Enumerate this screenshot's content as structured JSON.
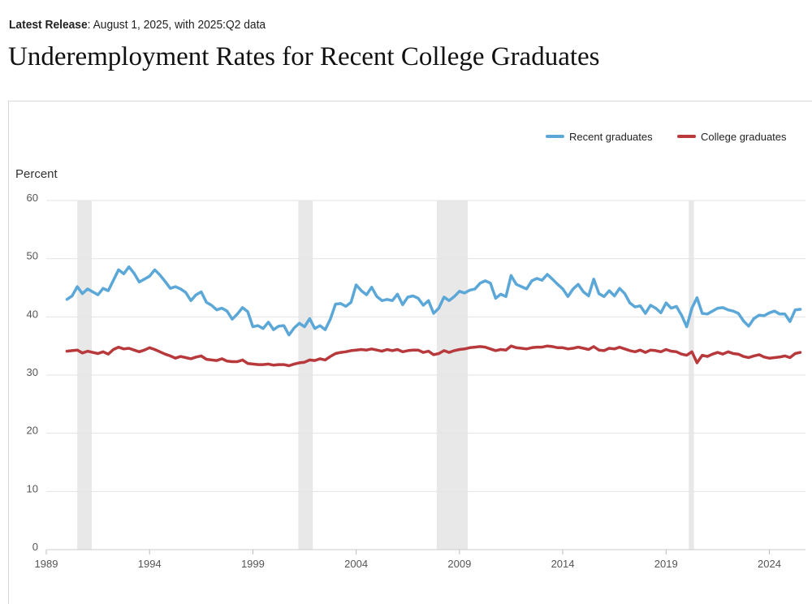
{
  "header": {
    "release_label": "Latest Release",
    "release_text": ": August 1, 2025, with 2025:Q2 data",
    "title": "Underemployment Rates for Recent College Graduates"
  },
  "chart_data": {
    "type": "line",
    "title": "Underemployment Rates for Recent College Graduates",
    "ylabel": "Percent",
    "xlabel": "",
    "ylim": [
      0,
      60
    ],
    "xlim": [
      1989.0,
      2025.75
    ],
    "yticks": [
      0,
      10,
      20,
      30,
      40,
      50,
      60
    ],
    "xticks": [
      1989,
      1994,
      1999,
      2004,
      2009,
      2014,
      2019,
      2024
    ],
    "legend_position": "top-right",
    "grid": true,
    "recessions": [
      [
        1990.5,
        1991.2
      ],
      [
        2001.2,
        2001.9
      ],
      [
        2007.9,
        2009.4
      ],
      [
        2020.1,
        2020.35
      ]
    ],
    "series": [
      {
        "name": "Recent graduates",
        "color": "#5ba7d8",
        "points": [
          [
            1990.0,
            43.0
          ],
          [
            1990.25,
            43.6
          ],
          [
            1990.5,
            45.2
          ],
          [
            1990.75,
            44.0
          ],
          [
            1991.0,
            44.8
          ],
          [
            1991.25,
            44.3
          ],
          [
            1991.5,
            43.8
          ],
          [
            1991.75,
            44.9
          ],
          [
            1992.0,
            44.5
          ],
          [
            1992.25,
            46.3
          ],
          [
            1992.5,
            48.1
          ],
          [
            1992.75,
            47.4
          ],
          [
            1993.0,
            48.6
          ],
          [
            1993.25,
            47.5
          ],
          [
            1993.5,
            46.0
          ],
          [
            1993.75,
            46.5
          ],
          [
            1994.0,
            47.0
          ],
          [
            1994.25,
            48.1
          ],
          [
            1994.5,
            47.2
          ],
          [
            1994.75,
            46.1
          ],
          [
            1995.0,
            44.9
          ],
          [
            1995.25,
            45.2
          ],
          [
            1995.5,
            44.8
          ],
          [
            1995.75,
            44.2
          ],
          [
            1996.0,
            42.8
          ],
          [
            1996.25,
            43.8
          ],
          [
            1996.5,
            44.3
          ],
          [
            1996.75,
            42.5
          ],
          [
            1997.0,
            42.0
          ],
          [
            1997.25,
            41.2
          ],
          [
            1997.5,
            41.5
          ],
          [
            1997.75,
            41.0
          ],
          [
            1998.0,
            39.6
          ],
          [
            1998.25,
            40.5
          ],
          [
            1998.5,
            41.6
          ],
          [
            1998.75,
            40.9
          ],
          [
            1999.0,
            38.3
          ],
          [
            1999.25,
            38.5
          ],
          [
            1999.5,
            38.0
          ],
          [
            1999.75,
            39.1
          ],
          [
            2000.0,
            37.8
          ],
          [
            2000.25,
            38.4
          ],
          [
            2000.5,
            38.5
          ],
          [
            2000.75,
            36.9
          ],
          [
            2001.0,
            38.1
          ],
          [
            2001.25,
            38.9
          ],
          [
            2001.5,
            38.3
          ],
          [
            2001.75,
            39.7
          ],
          [
            2002.0,
            38.0
          ],
          [
            2002.25,
            38.5
          ],
          [
            2002.5,
            37.8
          ],
          [
            2002.75,
            39.6
          ],
          [
            2003.0,
            42.2
          ],
          [
            2003.25,
            42.3
          ],
          [
            2003.5,
            41.8
          ],
          [
            2003.75,
            42.5
          ],
          [
            2004.0,
            45.5
          ],
          [
            2004.25,
            44.5
          ],
          [
            2004.5,
            43.8
          ],
          [
            2004.75,
            45.1
          ],
          [
            2005.0,
            43.5
          ],
          [
            2005.25,
            42.8
          ],
          [
            2005.5,
            43.0
          ],
          [
            2005.75,
            42.8
          ],
          [
            2006.0,
            43.9
          ],
          [
            2006.25,
            42.1
          ],
          [
            2006.5,
            43.4
          ],
          [
            2006.75,
            43.6
          ],
          [
            2007.0,
            43.2
          ],
          [
            2007.25,
            42.0
          ],
          [
            2007.5,
            42.8
          ],
          [
            2007.75,
            40.6
          ],
          [
            2008.0,
            41.5
          ],
          [
            2008.25,
            43.4
          ],
          [
            2008.5,
            42.8
          ],
          [
            2008.75,
            43.5
          ],
          [
            2009.0,
            44.4
          ],
          [
            2009.25,
            44.1
          ],
          [
            2009.5,
            44.6
          ],
          [
            2009.75,
            44.8
          ],
          [
            2010.0,
            45.8
          ],
          [
            2010.25,
            46.2
          ],
          [
            2010.5,
            45.8
          ],
          [
            2010.75,
            43.2
          ],
          [
            2011.0,
            43.9
          ],
          [
            2011.25,
            43.5
          ],
          [
            2011.5,
            47.1
          ],
          [
            2011.75,
            45.6
          ],
          [
            2012.0,
            45.2
          ],
          [
            2012.25,
            44.8
          ],
          [
            2012.5,
            46.2
          ],
          [
            2012.75,
            46.6
          ],
          [
            2013.0,
            46.3
          ],
          [
            2013.25,
            47.3
          ],
          [
            2013.5,
            46.5
          ],
          [
            2013.75,
            45.6
          ],
          [
            2014.0,
            44.8
          ],
          [
            2014.25,
            43.5
          ],
          [
            2014.5,
            44.8
          ],
          [
            2014.75,
            45.6
          ],
          [
            2015.0,
            44.3
          ],
          [
            2015.25,
            43.6
          ],
          [
            2015.5,
            46.5
          ],
          [
            2015.75,
            44.0
          ],
          [
            2016.0,
            43.5
          ],
          [
            2016.25,
            44.5
          ],
          [
            2016.5,
            43.6
          ],
          [
            2016.75,
            44.9
          ],
          [
            2017.0,
            44.0
          ],
          [
            2017.25,
            42.4
          ],
          [
            2017.5,
            41.7
          ],
          [
            2017.75,
            41.9
          ],
          [
            2018.0,
            40.6
          ],
          [
            2018.25,
            42.0
          ],
          [
            2018.5,
            41.5
          ],
          [
            2018.75,
            40.7
          ],
          [
            2019.0,
            42.4
          ],
          [
            2019.25,
            41.5
          ],
          [
            2019.5,
            41.8
          ],
          [
            2019.75,
            40.3
          ],
          [
            2020.0,
            38.3
          ],
          [
            2020.25,
            41.5
          ],
          [
            2020.5,
            43.3
          ],
          [
            2020.75,
            40.6
          ],
          [
            2021.0,
            40.5
          ],
          [
            2021.25,
            41.0
          ],
          [
            2021.5,
            41.5
          ],
          [
            2021.75,
            41.6
          ],
          [
            2022.0,
            41.2
          ],
          [
            2022.25,
            41.0
          ],
          [
            2022.5,
            40.6
          ],
          [
            2022.75,
            39.3
          ],
          [
            2023.0,
            38.4
          ],
          [
            2023.25,
            39.7
          ],
          [
            2023.5,
            40.3
          ],
          [
            2023.75,
            40.2
          ],
          [
            2024.0,
            40.7
          ],
          [
            2024.25,
            41.0
          ],
          [
            2024.5,
            40.5
          ],
          [
            2024.75,
            40.5
          ],
          [
            2025.0,
            39.2
          ],
          [
            2025.25,
            41.2
          ],
          [
            2025.5,
            41.3
          ]
        ]
      },
      {
        "name": "College graduates",
        "color": "#b8393c",
        "points": [
          [
            1990.0,
            34.1
          ],
          [
            1990.25,
            34.2
          ],
          [
            1990.5,
            34.3
          ],
          [
            1990.75,
            33.8
          ],
          [
            1991.0,
            34.1
          ],
          [
            1991.25,
            33.9
          ],
          [
            1991.5,
            33.7
          ],
          [
            1991.75,
            34.0
          ],
          [
            1992.0,
            33.6
          ],
          [
            1992.25,
            34.4
          ],
          [
            1992.5,
            34.8
          ],
          [
            1992.75,
            34.5
          ],
          [
            1993.0,
            34.6
          ],
          [
            1993.25,
            34.3
          ],
          [
            1993.5,
            34.0
          ],
          [
            1993.75,
            34.3
          ],
          [
            1994.0,
            34.7
          ],
          [
            1994.25,
            34.4
          ],
          [
            1994.5,
            34.0
          ],
          [
            1994.75,
            33.6
          ],
          [
            1995.0,
            33.3
          ],
          [
            1995.25,
            32.9
          ],
          [
            1995.5,
            33.2
          ],
          [
            1995.75,
            33.0
          ],
          [
            1996.0,
            32.8
          ],
          [
            1996.25,
            33.1
          ],
          [
            1996.5,
            33.3
          ],
          [
            1996.75,
            32.7
          ],
          [
            1997.0,
            32.6
          ],
          [
            1997.25,
            32.5
          ],
          [
            1997.5,
            32.8
          ],
          [
            1997.75,
            32.4
          ],
          [
            1998.0,
            32.3
          ],
          [
            1998.25,
            32.3
          ],
          [
            1998.5,
            32.6
          ],
          [
            1998.75,
            32.0
          ],
          [
            1999.0,
            31.9
          ],
          [
            1999.25,
            31.8
          ],
          [
            1999.5,
            31.8
          ],
          [
            1999.75,
            31.9
          ],
          [
            2000.0,
            31.7
          ],
          [
            2000.25,
            31.8
          ],
          [
            2000.5,
            31.8
          ],
          [
            2000.75,
            31.6
          ],
          [
            2001.0,
            31.9
          ],
          [
            2001.25,
            32.1
          ],
          [
            2001.5,
            32.2
          ],
          [
            2001.75,
            32.6
          ],
          [
            2002.0,
            32.5
          ],
          [
            2002.25,
            32.8
          ],
          [
            2002.5,
            32.6
          ],
          [
            2002.75,
            33.2
          ],
          [
            2003.0,
            33.7
          ],
          [
            2003.25,
            33.9
          ],
          [
            2003.5,
            34.0
          ],
          [
            2003.75,
            34.2
          ],
          [
            2004.0,
            34.3
          ],
          [
            2004.25,
            34.4
          ],
          [
            2004.5,
            34.3
          ],
          [
            2004.75,
            34.5
          ],
          [
            2005.0,
            34.3
          ],
          [
            2005.25,
            34.1
          ],
          [
            2005.5,
            34.4
          ],
          [
            2005.75,
            34.2
          ],
          [
            2006.0,
            34.4
          ],
          [
            2006.25,
            34.0
          ],
          [
            2006.5,
            34.2
          ],
          [
            2006.75,
            34.3
          ],
          [
            2007.0,
            34.3
          ],
          [
            2007.25,
            33.9
          ],
          [
            2007.5,
            34.1
          ],
          [
            2007.75,
            33.5
          ],
          [
            2008.0,
            33.7
          ],
          [
            2008.25,
            34.2
          ],
          [
            2008.5,
            33.9
          ],
          [
            2008.75,
            34.2
          ],
          [
            2009.0,
            34.4
          ],
          [
            2009.25,
            34.5
          ],
          [
            2009.5,
            34.7
          ],
          [
            2009.75,
            34.8
          ],
          [
            2010.0,
            34.9
          ],
          [
            2010.25,
            34.8
          ],
          [
            2010.5,
            34.5
          ],
          [
            2010.75,
            34.2
          ],
          [
            2011.0,
            34.4
          ],
          [
            2011.25,
            34.3
          ],
          [
            2011.5,
            35.0
          ],
          [
            2011.75,
            34.7
          ],
          [
            2012.0,
            34.6
          ],
          [
            2012.25,
            34.5
          ],
          [
            2012.5,
            34.7
          ],
          [
            2012.75,
            34.8
          ],
          [
            2013.0,
            34.8
          ],
          [
            2013.25,
            35.0
          ],
          [
            2013.5,
            34.9
          ],
          [
            2013.75,
            34.7
          ],
          [
            2014.0,
            34.7
          ],
          [
            2014.25,
            34.5
          ],
          [
            2014.5,
            34.6
          ],
          [
            2014.75,
            34.8
          ],
          [
            2015.0,
            34.6
          ],
          [
            2015.25,
            34.4
          ],
          [
            2015.5,
            34.9
          ],
          [
            2015.75,
            34.3
          ],
          [
            2016.0,
            34.2
          ],
          [
            2016.25,
            34.6
          ],
          [
            2016.5,
            34.5
          ],
          [
            2016.75,
            34.8
          ],
          [
            2017.0,
            34.5
          ],
          [
            2017.25,
            34.2
          ],
          [
            2017.5,
            34.0
          ],
          [
            2017.75,
            34.3
          ],
          [
            2018.0,
            33.9
          ],
          [
            2018.25,
            34.3
          ],
          [
            2018.5,
            34.2
          ],
          [
            2018.75,
            34.0
          ],
          [
            2019.0,
            34.4
          ],
          [
            2019.25,
            34.1
          ],
          [
            2019.5,
            34.0
          ],
          [
            2019.75,
            33.6
          ],
          [
            2020.0,
            33.4
          ],
          [
            2020.25,
            34.0
          ],
          [
            2020.5,
            32.1
          ],
          [
            2020.75,
            33.4
          ],
          [
            2021.0,
            33.2
          ],
          [
            2021.25,
            33.6
          ],
          [
            2021.5,
            33.9
          ],
          [
            2021.75,
            33.6
          ],
          [
            2022.0,
            34.0
          ],
          [
            2022.25,
            33.7
          ],
          [
            2022.5,
            33.6
          ],
          [
            2022.75,
            33.2
          ],
          [
            2023.0,
            33.0
          ],
          [
            2023.25,
            33.3
          ],
          [
            2023.5,
            33.5
          ],
          [
            2023.75,
            33.1
          ],
          [
            2024.0,
            32.9
          ],
          [
            2024.25,
            33.0
          ],
          [
            2024.5,
            33.1
          ],
          [
            2024.75,
            33.3
          ],
          [
            2025.0,
            33.0
          ],
          [
            2025.25,
            33.7
          ],
          [
            2025.5,
            33.9
          ]
        ]
      }
    ]
  }
}
